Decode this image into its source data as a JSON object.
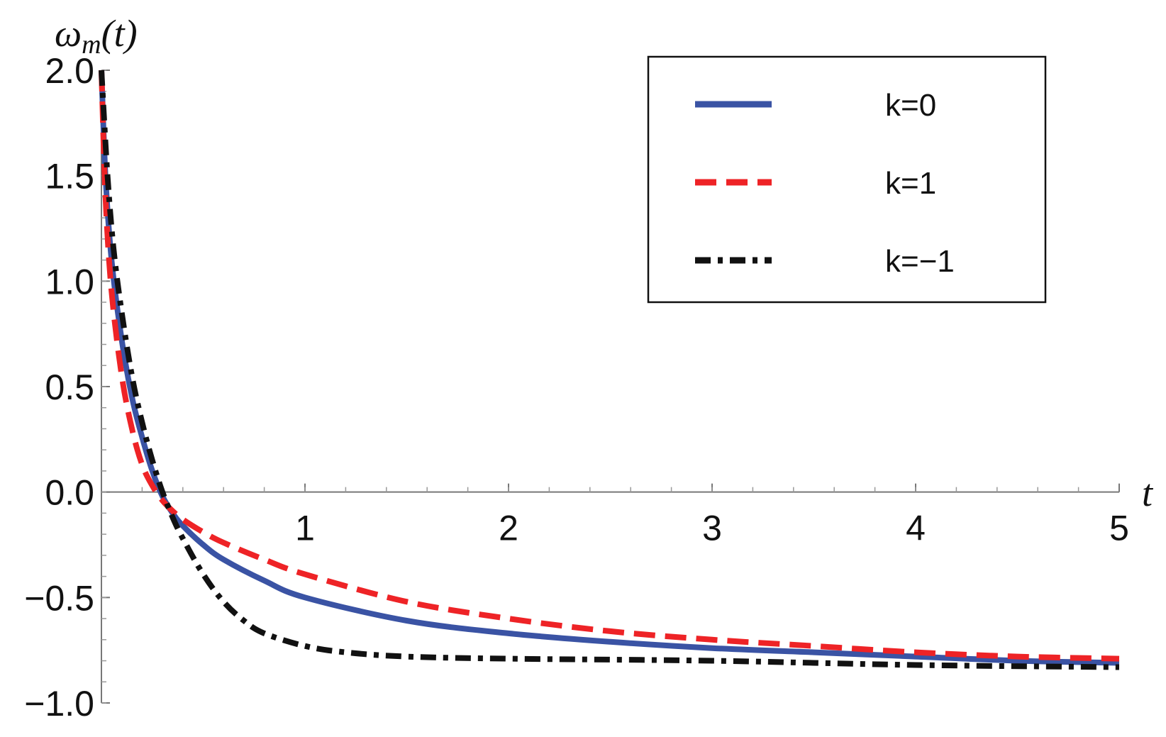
{
  "chart_data": {
    "type": "line",
    "xlabel": "t",
    "ylabel": "ω",
    "ylabel_sub": "m",
    "ylabel_tail": "(t)",
    "xlim": [
      0,
      5
    ],
    "ylim": [
      -1.0,
      2.0
    ],
    "xticks": [
      1,
      2,
      3,
      4,
      5
    ],
    "xtick_labels": [
      "1",
      "2",
      "3",
      "4",
      "5"
    ],
    "yticks": [
      -1.0,
      -0.5,
      0.0,
      0.5,
      1.0,
      1.5,
      2.0
    ],
    "ytick_labels": [
      "−1.0",
      "−0.5",
      "0.0",
      "0.5",
      "1.0",
      "1.5",
      "2.0"
    ],
    "grid": false,
    "legend_position": "top-right",
    "series": [
      {
        "name": "k=0",
        "color": "#3a53a4",
        "style": "solid",
        "x": [
          0.0,
          0.02,
          0.05,
          0.1,
          0.15,
          0.2,
          0.25,
          0.3,
          0.35,
          0.4,
          0.5,
          0.6,
          0.8,
          1.0,
          1.5,
          2.0,
          2.5,
          3.0,
          3.5,
          4.0,
          4.5,
          5.0
        ],
        "y": [
          2.0,
          1.5,
          1.1,
          0.72,
          0.45,
          0.26,
          0.1,
          -0.02,
          -0.1,
          -0.16,
          -0.25,
          -0.32,
          -0.42,
          -0.5,
          -0.61,
          -0.67,
          -0.71,
          -0.74,
          -0.76,
          -0.78,
          -0.8,
          -0.81
        ]
      },
      {
        "name": "k=1",
        "color": "#ee2326",
        "style": "dashed",
        "x": [
          0.0,
          0.02,
          0.05,
          0.1,
          0.15,
          0.2,
          0.25,
          0.3,
          0.35,
          0.4,
          0.5,
          0.6,
          0.8,
          1.0,
          1.5,
          2.0,
          2.5,
          3.0,
          3.5,
          4.0,
          4.5,
          5.0
        ],
        "y": [
          2.0,
          1.4,
          0.95,
          0.55,
          0.3,
          0.13,
          0.03,
          -0.04,
          -0.09,
          -0.13,
          -0.19,
          -0.24,
          -0.32,
          -0.39,
          -0.52,
          -0.6,
          -0.66,
          -0.7,
          -0.73,
          -0.76,
          -0.78,
          -0.79
        ]
      },
      {
        "name": "k=−1",
        "color": "#111111",
        "style": "dashdot",
        "x": [
          0.0,
          0.03,
          0.06,
          0.1,
          0.15,
          0.2,
          0.25,
          0.3,
          0.35,
          0.4,
          0.5,
          0.6,
          0.7,
          0.8,
          1.0,
          1.2,
          1.5,
          2.0,
          3.0,
          4.0,
          5.0
        ],
        "y": [
          2.0,
          1.5,
          1.15,
          0.85,
          0.55,
          0.33,
          0.15,
          0.0,
          -0.12,
          -0.22,
          -0.39,
          -0.52,
          -0.61,
          -0.67,
          -0.73,
          -0.76,
          -0.78,
          -0.79,
          -0.8,
          -0.82,
          -0.83
        ]
      }
    ]
  }
}
